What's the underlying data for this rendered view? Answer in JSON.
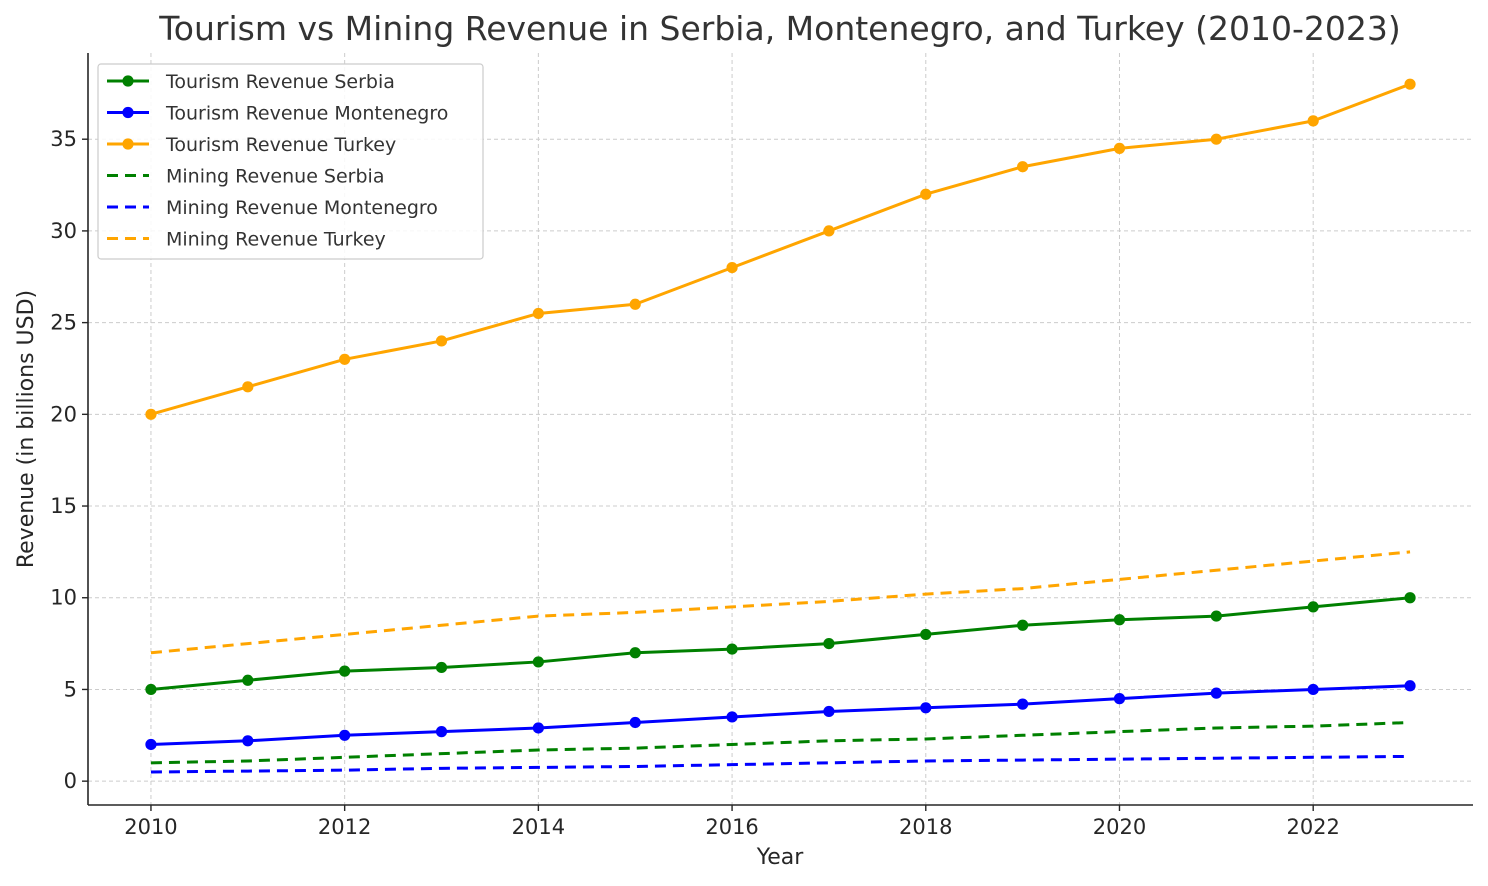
{
  "chart_data": {
    "type": "line",
    "title": "Tourism vs Mining Revenue in Serbia, Montenegro, and Turkey (2010-2023)",
    "xlabel": "Year",
    "ylabel": "Revenue (in billions USD)",
    "x": [
      2010,
      2011,
      2012,
      2013,
      2014,
      2015,
      2016,
      2017,
      2018,
      2019,
      2020,
      2021,
      2022,
      2023
    ],
    "xticks": [
      "2010",
      "2012",
      "2014",
      "2016",
      "2018",
      "2020",
      "2022"
    ],
    "yticks": [
      "0",
      "5",
      "10",
      "15",
      "20",
      "25",
      "30",
      "35"
    ],
    "xlim": [
      2009.35,
      2023.65
    ],
    "ylim": [
      -1.3,
      39.7
    ],
    "grid": true,
    "legend_position": "top-left",
    "series": [
      {
        "name": "Tourism Revenue Serbia",
        "color": "#008000",
        "style": "solid",
        "markers": true,
        "values": [
          5,
          5.5,
          6,
          6.2,
          6.5,
          7,
          7.2,
          7.5,
          8,
          8.5,
          8.8,
          9,
          9.5,
          10
        ]
      },
      {
        "name": "Tourism Revenue Montenegro",
        "color": "#0000ff",
        "style": "solid",
        "markers": true,
        "values": [
          2,
          2.2,
          2.5,
          2.7,
          2.9,
          3.2,
          3.5,
          3.8,
          4,
          4.2,
          4.5,
          4.8,
          5,
          5.2
        ]
      },
      {
        "name": "Tourism Revenue Turkey",
        "color": "#ffa500",
        "style": "solid",
        "markers": true,
        "values": [
          20,
          21.5,
          23,
          24,
          25.5,
          26,
          28,
          30,
          32,
          33.5,
          34.5,
          35,
          36,
          38
        ]
      },
      {
        "name": "Mining Revenue Serbia",
        "color": "#008000",
        "style": "dashed",
        "markers": false,
        "values": [
          1,
          1.1,
          1.3,
          1.5,
          1.7,
          1.8,
          2,
          2.2,
          2.3,
          2.5,
          2.7,
          2.9,
          3,
          3.2
        ]
      },
      {
        "name": "Mining Revenue Montenegro",
        "color": "#0000ff",
        "style": "dashed",
        "markers": false,
        "values": [
          0.5,
          0.55,
          0.6,
          0.7,
          0.75,
          0.8,
          0.9,
          1,
          1.1,
          1.15,
          1.2,
          1.25,
          1.3,
          1.35
        ]
      },
      {
        "name": "Mining Revenue Turkey",
        "color": "#ffa500",
        "style": "dashed",
        "markers": false,
        "values": [
          7,
          7.5,
          8,
          8.5,
          9,
          9.2,
          9.5,
          9.8,
          10.2,
          10.5,
          11,
          11.5,
          12,
          12.5
        ]
      }
    ]
  }
}
